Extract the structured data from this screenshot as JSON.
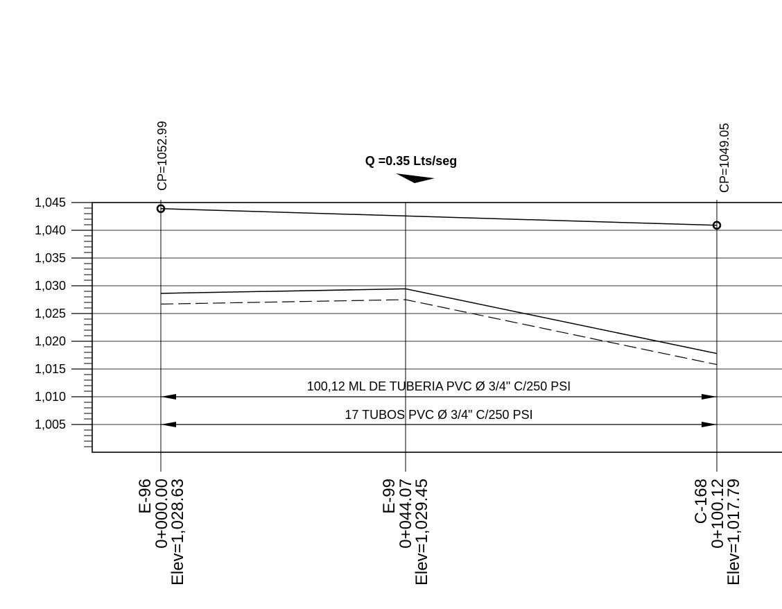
{
  "flow": {
    "label": "Q =0.35 Lts/seg"
  },
  "y_ticks": [
    "1,045",
    "1,040",
    "1,035",
    "1,030",
    "1,025",
    "1,020",
    "1,015",
    "1,010",
    "1,005"
  ],
  "stations": [
    {
      "id": "E-96",
      "chainage": "0+000.00",
      "elev": "Elev=1,028.63",
      "cp": "CP=1052.99"
    },
    {
      "id": "E-99",
      "chainage": "0+044.07",
      "elev": "Elev=1,029.45",
      "cp": ""
    },
    {
      "id": "C-168",
      "chainage": "0+100.12",
      "elev": "Elev=1,017.79",
      "cp": "CP=1049.05"
    }
  ],
  "dimensions": {
    "pipe_length": "100,12 ML DE TUBERIA PVC Ø  3/4\" C/250 PSI",
    "tubes": "17 TUBOS PVC Ø 3/4\" C/250 PSI"
  },
  "chart_data": {
    "type": "line",
    "ylim": [
      1000,
      1045
    ],
    "xlim": [
      0,
      100.12
    ],
    "y_ticks": [
      1045,
      1040,
      1035,
      1030,
      1025,
      1020,
      1015,
      1010,
      1005
    ],
    "stations_x": [
      0,
      44.07,
      100.12
    ],
    "series": [
      {
        "x": [
          0,
          100.12
        ],
        "y": [
          1043.9,
          1040.9
        ],
        "style": "solid",
        "markers": "circle"
      },
      {
        "x": [
          0,
          44.07,
          100.12
        ],
        "y": [
          1028.63,
          1029.45,
          1017.79
        ],
        "style": "solid"
      },
      {
        "x": [
          0,
          44.07,
          100.12
        ],
        "y": [
          1026.7,
          1027.5,
          1015.8
        ],
        "style": "dashed"
      }
    ]
  }
}
